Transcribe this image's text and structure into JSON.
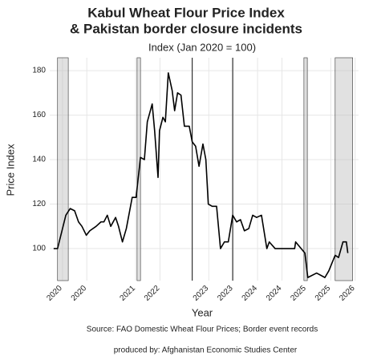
{
  "chart_data": {
    "type": "line",
    "title": "Kabul Wheat Flour Price Index",
    "title2": "& Pakistan border closure incidents",
    "subtitle": "Index (Jan 2020 = 100)",
    "xlabel": "Year",
    "ylabel": "Price Index",
    "source": "Source: FAO Domestic Wheat Flour Prices; Border event records",
    "credit": "produced by: Afghanistan Economic Studies Center",
    "x": [
      2019.82,
      2019.9,
      2020.07,
      2020.16,
      2020.25,
      2020.33,
      2020.4,
      2020.49,
      2020.56,
      2020.69,
      2020.79,
      2020.85,
      2020.92,
      2020.99,
      2021.09,
      2021.15,
      2021.23,
      2021.31,
      2021.43,
      2021.51,
      2021.6,
      2021.68,
      2021.74,
      2021.84,
      2021.89,
      2021.96,
      2021.99,
      2022.06,
      2022.11,
      2022.17,
      2022.25,
      2022.3,
      2022.36,
      2022.43,
      2022.5,
      2022.6,
      2022.66,
      2022.73,
      2022.8,
      2022.88,
      2022.94,
      2022.99,
      2023.07,
      2023.16,
      2023.24,
      2023.32,
      2023.4,
      2023.49,
      2023.57,
      2023.65,
      2023.73,
      2023.82,
      2023.9,
      2023.98,
      2024.08,
      2024.19,
      2024.24,
      2024.36,
      2024.76,
      2024.78,
      2024.97,
      2025.03,
      2025.21,
      2025.38,
      2025.46,
      2025.59,
      2025.66,
      2025.75,
      2025.82,
      2025.85
    ],
    "series": [
      {
        "name": "Price Index",
        "color": "#000000",
        "values": [
          100,
          100,
          115,
          118,
          117,
          112,
          110,
          106,
          108,
          110,
          112,
          112,
          115,
          110,
          114,
          110,
          103,
          109,
          123,
          123,
          141,
          140,
          157,
          165,
          153,
          132,
          153,
          159,
          157,
          179,
          171,
          162,
          170,
          169,
          155,
          155,
          148,
          146,
          137,
          147,
          140,
          120,
          119,
          119,
          100,
          103,
          103,
          115,
          112,
          113,
          108,
          109,
          115,
          114,
          115,
          100,
          103,
          100,
          100,
          103,
          98,
          87,
          89,
          87,
          90,
          97,
          96,
          103,
          103,
          98
        ]
      }
    ],
    "shaded_regions": [
      [
        2019.9,
        2020.12
      ],
      [
        2021.53,
        2021.6
      ],
      [
        2024.95,
        2025.02
      ],
      [
        2025.59,
        2025.95
      ]
    ],
    "vlines": [
      2022.66,
      2023.49
    ],
    "xlim": [
      2019.74,
      2026.07
    ],
    "xticks": [
      {
        "value": 2020.0,
        "label": "2020"
      },
      {
        "value": 2020.5,
        "label": "2020"
      },
      {
        "value": 2021.5,
        "label": "2021"
      },
      {
        "value": 2022.0,
        "label": "2022"
      },
      {
        "value": 2023.0,
        "label": "2023"
      },
      {
        "value": 2023.5,
        "label": "2023"
      },
      {
        "value": 2024.0,
        "label": "2024"
      },
      {
        "value": 2024.5,
        "label": "2024"
      },
      {
        "value": 2025.0,
        "label": "2025"
      },
      {
        "value": 2025.5,
        "label": "2025"
      },
      {
        "value": 2026.0,
        "label": "2026"
      }
    ],
    "ylim": [
      85.6,
      185.8
    ],
    "yticks": [
      100,
      120,
      140,
      160,
      180
    ],
    "grid": true
  }
}
